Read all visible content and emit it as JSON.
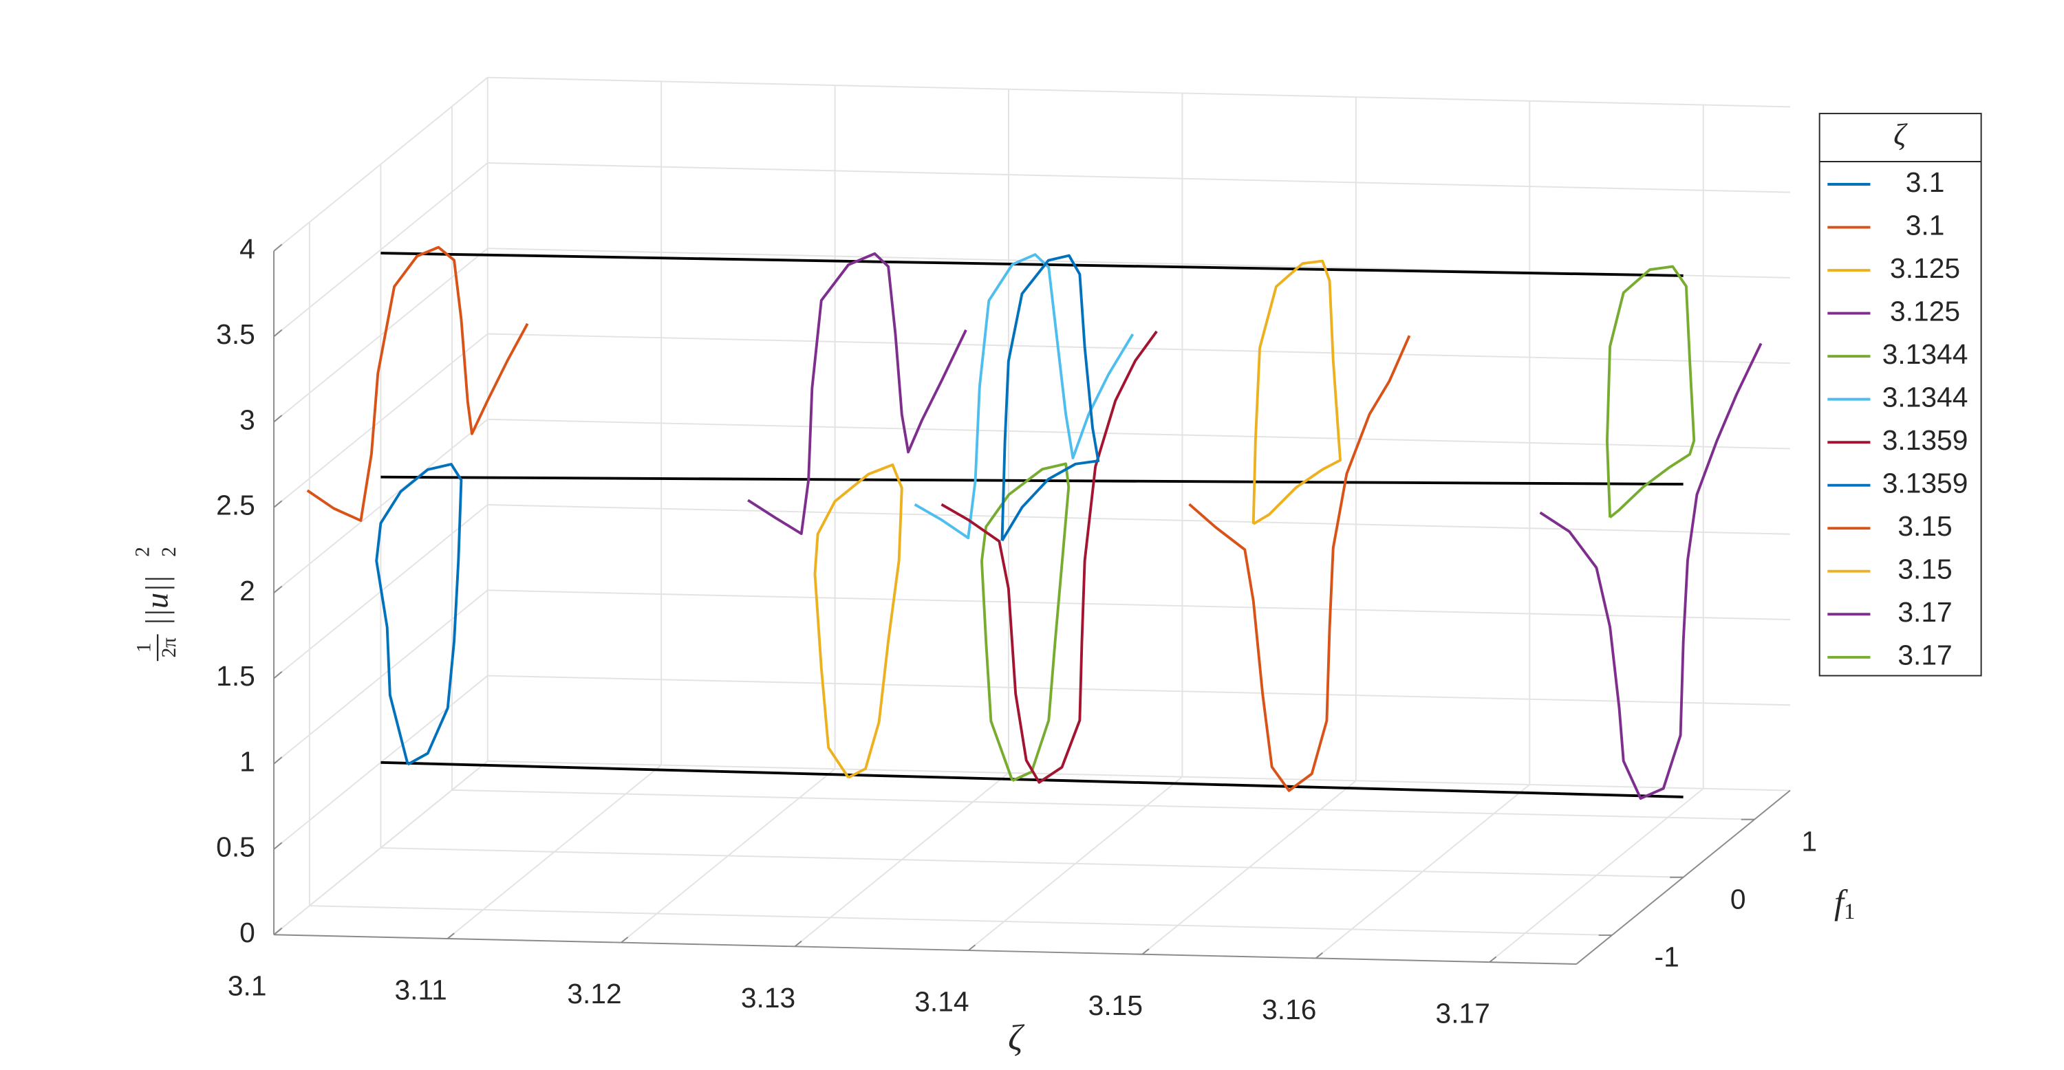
{
  "chart_data": {
    "type": "line3d",
    "xlabel": "ζ",
    "ylabel": {
      "base": "f",
      "sub": "1"
    },
    "zlabel": {
      "num": "1",
      "den": "2π",
      "norm": "||u||",
      "sub": "2",
      "sup": "2"
    },
    "legend_title": "ζ",
    "xlim": [
      3.1,
      3.175
    ],
    "xticks": [
      3.1,
      3.11,
      3.12,
      3.13,
      3.14,
      3.15,
      3.16,
      3.17
    ],
    "ylim": [
      -1.5,
      1.5
    ],
    "yticks": [
      -1,
      0,
      1
    ],
    "zlim": [
      0,
      4
    ],
    "zticks": [
      0,
      0.5,
      1,
      1.5,
      2,
      2.5,
      3,
      3.5,
      4
    ],
    "grid": true,
    "series": [
      {
        "name": 3.1,
        "color": "#0072BD",
        "y": [
          0.38,
          0.13,
          0.09,
          -0.06,
          0,
          0.28,
          0.66,
          0.99,
          1.13,
          1.09,
          1.03,
          0.94,
          0.66,
          0.38
        ],
        "z": [
          0.36,
          0.85,
          1.26,
          1.7,
          1.9,
          1.99,
          1.99,
          1.91,
          1.77,
          1.31,
          0.86,
          0.5,
          0.33,
          0.36
        ]
      },
      {
        "name": 3.1,
        "color": "#D95319",
        "y": [
          -1.03,
          -0.66,
          -0.28,
          -0.13,
          -0.04,
          0.19,
          0.51,
          0.81,
          1.03,
          1.13,
          1.22,
          1.28,
          1.5,
          1.78,
          2.06
        ],
        "z": [
          2.44,
          2.21,
          2.01,
          2.35,
          2.79,
          3.22,
          3.29,
          3.24,
          3.09,
          2.71,
          2.2,
          1.99,
          2.11,
          2.25,
          2.37
        ]
      },
      {
        "name": 3.125,
        "color": "#EDB120",
        "y": [
          0.47,
          0.19,
          0.09,
          0,
          0.04,
          0.28,
          0.75,
          1.09,
          1.22,
          1.18,
          1.03,
          0.9,
          0.71,
          0.47
        ],
        "z": [
          0.31,
          0.58,
          1.08,
          1.66,
          1.88,
          1.99,
          1.99,
          1.93,
          1.75,
          1.34,
          0.92,
          0.49,
          0.28,
          0.31
        ]
      },
      {
        "name": 3.125,
        "color": "#7E2F8E",
        "y": [
          -0.94,
          -0.56,
          -0.19,
          -0.09,
          -0.04,
          0.09,
          0.47,
          0.84,
          1.03,
          1.13,
          1.22,
          1.31,
          1.5,
          1.78,
          2.12
        ],
        "z": [
          2.41,
          2.18,
          1.96,
          2.24,
          2.76,
          3.23,
          3.31,
          3.25,
          3.11,
          2.68,
          2.18,
          1.93,
          2.05,
          2.19,
          2.37
        ]
      },
      {
        "name": 3.1344,
        "color": "#77AC30",
        "y": [
          0.48,
          0.18,
          0.11,
          0.05,
          0.11,
          0.43,
          0.9,
          1.23,
          1.27,
          1.18,
          1.08,
          0.99,
          0.75,
          0.48
        ],
        "z": [
          0.31,
          0.76,
          1.25,
          1.74,
          1.92,
          2.0,
          1.99,
          1.91,
          1.76,
          1.36,
          0.92,
          0.49,
          0.27,
          0.31
        ]
      },
      {
        "name": 3.1344,
        "color": "#4DBEEE",
        "y": [
          -0.89,
          -0.51,
          -0.14,
          -0.04,
          0.02,
          0.15,
          0.48,
          0.8,
          0.99,
          1.12,
          1.23,
          1.33,
          1.55,
          1.83,
          2.17
        ],
        "z": [
          2.39,
          2.17,
          1.94,
          2.24,
          2.77,
          3.23,
          3.33,
          3.28,
          3.14,
          2.63,
          2.2,
          1.91,
          2.09,
          2.23,
          2.35
        ]
      },
      {
        "name": 3.1359,
        "color": "#A2142F",
        "y": [
          -0.88,
          -0.5,
          -0.07,
          0.06,
          0.16,
          0.31,
          0.49,
          0.81,
          1.06,
          1.09,
          1.13,
          1.28,
          1.56,
          1.84,
          2.14
        ],
        "z": [
          2.39,
          2.17,
          1.9,
          1.58,
          0.93,
          0.49,
          0.3,
          0.28,
          0.47,
          0.92,
          1.38,
          1.88,
          2.17,
          2.31,
          2.38
        ]
      },
      {
        "name": 3.1359,
        "color": "#0072BD",
        "y": [
          -0.03,
          0.01,
          0.06,
          0.25,
          0.62,
          0.91,
          1.06,
          1.13,
          1.24,
          1.32,
          1.0,
          0.62,
          0.25,
          -0.03
        ],
        "z": [
          1.89,
          2.46,
          2.91,
          3.24,
          3.31,
          3.24,
          3.08,
          2.63,
          2.12,
          1.9,
          1.99,
          2.03,
          1.99,
          1.89
        ]
      },
      {
        "name": 3.15,
        "color": "#D95319",
        "y": [
          -0.84,
          -0.47,
          -0.06,
          0.06,
          0.19,
          0.32,
          0.56,
          0.88,
          1.09,
          1.13,
          1.18,
          1.37,
          1.69,
          1.97,
          2.25
        ],
        "z": [
          2.41,
          2.15,
          1.88,
          1.54,
          0.95,
          0.48,
          0.26,
          0.25,
          0.49,
          1.02,
          1.47,
          1.84,
          2.08,
          2.18,
          2.35
        ]
      },
      {
        "name": 3.15,
        "color": "#EDB120",
        "y": [
          0.06,
          0.09,
          0.15,
          0.38,
          0.75,
          1.03,
          1.13,
          1.18,
          1.26,
          1.28,
          1.03,
          0.66,
          0.28,
          0.06
        ],
        "z": [
          1.99,
          2.47,
          2.99,
          3.27,
          3.28,
          3.2,
          3.05,
          2.57,
          2.07,
          1.95,
          1.98,
          2.0,
          1.97,
          1.99
        ]
      },
      {
        "name": 3.17,
        "color": "#7E2F8E",
        "y": [
          -0.79,
          -0.38,
          0,
          0.19,
          0.32,
          0.38,
          0.62,
          0.94,
          1.18,
          1.22,
          1.28,
          1.41,
          1.69,
          1.97,
          2.31
        ],
        "z": [
          2.39,
          2.14,
          1.8,
          1.39,
          0.87,
          0.54,
          0.24,
          0.19,
          0.42,
          0.96,
          1.41,
          1.75,
          1.97,
          2.15,
          2.33
        ]
      },
      {
        "name": 3.17,
        "color": "#77AC30",
        "y": [
          0.19,
          0.15,
          0.19,
          0.38,
          0.75,
          1.07,
          1.26,
          1.31,
          1.37,
          1.31,
          1.03,
          0.66,
          0.32,
          0.19
        ],
        "z": [
          2.03,
          2.49,
          3.03,
          3.28,
          3.29,
          3.2,
          3.02,
          2.57,
          2.08,
          2.02,
          2.04,
          2.05,
          2.03,
          2.03
        ]
      }
    ],
    "lines": [
      {
        "color": "#000000",
        "x": [
          3.1,
          3.175
        ],
        "y": [
          0,
          0
        ],
        "z": [
          3.48,
          3.52
        ]
      },
      {
        "color": "#000000",
        "x": [
          3.1,
          3.175
        ],
        "y": [
          0,
          0
        ],
        "z": [
          2.17,
          2.3
        ]
      },
      {
        "color": "#000000",
        "x": [
          3.1,
          3.175
        ],
        "y": [
          0,
          0
        ],
        "z": [
          0.5,
          0.47
        ]
      }
    ]
  }
}
